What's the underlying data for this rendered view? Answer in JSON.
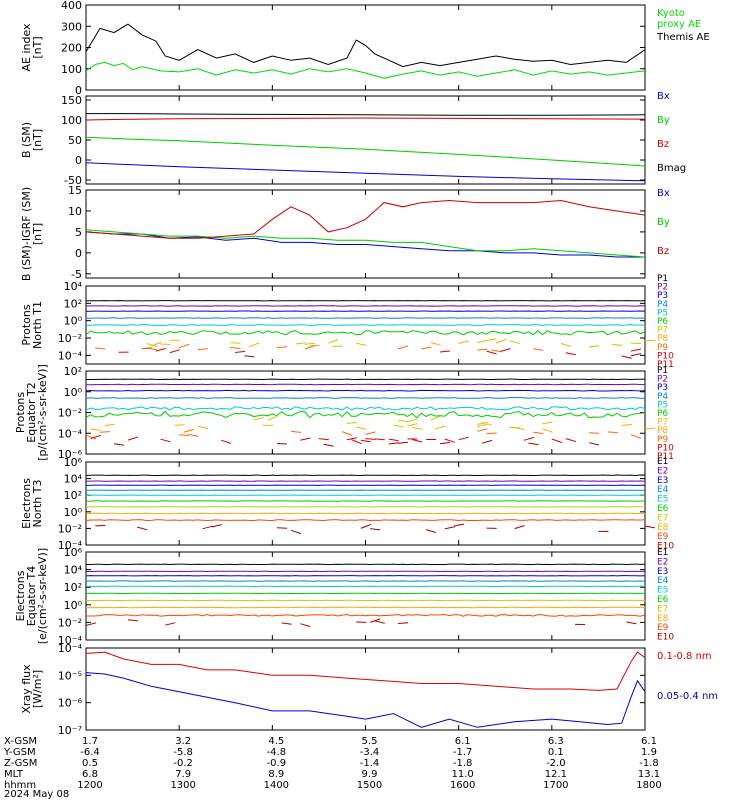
{
  "chart_data": [
    {
      "type": "line",
      "ylabel": "AE index\n[nT]",
      "yscale": "linear",
      "ylim": [
        0,
        400
      ],
      "yticks": [
        0,
        100,
        200,
        300,
        400
      ],
      "ytick_labels": [
        "0",
        "100",
        "200",
        "300",
        "400"
      ],
      "legend_placement": "right",
      "series": [
        {
          "name": "Kyoto\nproxy AE",
          "color": "#00dd00",
          "x": [
            0,
            0.1,
            0.2,
            0.3,
            0.4,
            0.5,
            0.6,
            0.8,
            1.0,
            1.2,
            1.4,
            1.6,
            1.8,
            2.0,
            2.2,
            2.4,
            2.6,
            2.8,
            3.0,
            3.2,
            3.4,
            3.6,
            3.8,
            4.0,
            4.2,
            4.4,
            4.6,
            4.8,
            5.0,
            5.2,
            5.4,
            5.6,
            5.8,
            6.0
          ],
          "y": [
            90,
            120,
            130,
            115,
            125,
            95,
            110,
            90,
            85,
            100,
            70,
            95,
            80,
            95,
            75,
            100,
            85,
            100,
            80,
            55,
            75,
            90,
            70,
            85,
            65,
            80,
            95,
            70,
            90,
            75,
            85,
            70,
            80,
            90
          ]
        },
        {
          "name": "Themis AE",
          "color": "#000000",
          "x": [
            0,
            0.15,
            0.3,
            0.45,
            0.6,
            0.75,
            0.85,
            1.0,
            1.2,
            1.4,
            1.6,
            1.8,
            2.0,
            2.2,
            2.4,
            2.6,
            2.8,
            2.9,
            3.0,
            3.1,
            3.2,
            3.4,
            3.6,
            3.8,
            4.0,
            4.2,
            4.4,
            4.6,
            4.8,
            5.0,
            5.2,
            5.4,
            5.6,
            5.8,
            6.0
          ],
          "y": [
            180,
            290,
            270,
            310,
            260,
            230,
            160,
            140,
            190,
            150,
            170,
            130,
            160,
            140,
            150,
            120,
            150,
            235,
            210,
            170,
            150,
            110,
            130,
            115,
            130,
            145,
            160,
            145,
            135,
            140,
            120,
            130,
            140,
            130,
            190
          ]
        }
      ]
    },
    {
      "type": "line",
      "ylabel": "B (SM)\n[nT]",
      "yscale": "linear",
      "ylim": [
        -60,
        160
      ],
      "yticks": [
        -50,
        0,
        50,
        100,
        150
      ],
      "ytick_labels": [
        "-50",
        "0",
        "50",
        "100",
        "150"
      ],
      "legend_placement": "right",
      "series": [
        {
          "name": "Bx",
          "color": "#0000cc",
          "x": [
            0,
            0.5,
            1,
            2,
            3,
            4,
            5,
            6
          ],
          "y": [
            -7,
            -12,
            -17,
            -25,
            -33,
            -41,
            -47,
            -52
          ]
        },
        {
          "name": "By",
          "color": "#00cc00",
          "x": [
            0,
            0.5,
            1,
            2,
            3,
            4,
            5,
            6
          ],
          "y": [
            57,
            52,
            48,
            37,
            27,
            14,
            0,
            -15
          ]
        },
        {
          "name": "Bz",
          "color": "#cc0000",
          "x": [
            0,
            0.5,
            1,
            2,
            3,
            4,
            5,
            6
          ],
          "y": [
            100,
            102,
            103,
            104,
            105,
            104,
            103,
            102
          ]
        },
        {
          "name": "Bmag",
          "color": "#000000",
          "x": [
            0,
            0.5,
            1,
            2,
            3,
            4,
            5,
            6
          ],
          "y": [
            116,
            116,
            115,
            114,
            113,
            112,
            112,
            113
          ]
        }
      ]
    },
    {
      "type": "line",
      "ylabel": "B (SM)-IGRF (SM)\n[nT]",
      "yscale": "linear",
      "ylim": [
        -6,
        15
      ],
      "yticks": [
        -5,
        0,
        5,
        10,
        15
      ],
      "ytick_labels": [
        "-5",
        "0",
        "5",
        "10",
        "15"
      ],
      "legend_placement": "right",
      "series": [
        {
          "name": "Bx",
          "color": "#0000cc",
          "x": [
            0,
            0.3,
            0.6,
            0.9,
            1.2,
            1.5,
            1.8,
            2.1,
            2.4,
            2.7,
            3.0,
            3.3,
            3.6,
            3.9,
            4.2,
            4.5,
            4.8,
            5.1,
            5.4,
            5.7,
            6.0
          ],
          "y": [
            5,
            4.5,
            4.5,
            3.5,
            3.8,
            3,
            3.5,
            2.5,
            2.5,
            2,
            2,
            1.5,
            1,
            0.5,
            0.5,
            0,
            0,
            -0.5,
            -0.5,
            -1,
            -1
          ]
        },
        {
          "name": "By",
          "color": "#00cc00",
          "x": [
            0,
            0.3,
            0.6,
            0.9,
            1.2,
            1.5,
            1.8,
            2.1,
            2.4,
            2.7,
            3.0,
            3.3,
            3.6,
            3.9,
            4.2,
            4.5,
            4.8,
            5.1,
            5.4,
            5.7,
            6.0
          ],
          "y": [
            5.5,
            5,
            4.5,
            4,
            4,
            3.5,
            4,
            3.5,
            3.5,
            3,
            3,
            2.5,
            2.5,
            1.5,
            0.5,
            0.5,
            1,
            0.5,
            0,
            -0.5,
            -1
          ]
        },
        {
          "name": "Bz",
          "color": "#cc0000",
          "x": [
            0,
            0.3,
            0.6,
            0.9,
            1.2,
            1.5,
            1.8,
            2.0,
            2.2,
            2.4,
            2.6,
            2.8,
            3.0,
            3.2,
            3.4,
            3.6,
            3.9,
            4.2,
            4.5,
            4.8,
            5.1,
            5.4,
            5.7,
            6.0
          ],
          "y": [
            5,
            4.5,
            4,
            3.5,
            3.5,
            4,
            4.5,
            8,
            11,
            9,
            5,
            6,
            8,
            12,
            11,
            12,
            12.5,
            12,
            12,
            12,
            12.5,
            11,
            10,
            9
          ]
        }
      ]
    },
    {
      "type": "line",
      "ylabel": "Protons\nNorth T1",
      "yscale": "log",
      "ylim": [
        -5,
        4
      ],
      "yticks": [
        -4,
        -2,
        0,
        2,
        4
      ],
      "ytick_labels": [
        "10⁻⁴",
        "10⁻²",
        "10⁰",
        "10²",
        "10⁴"
      ],
      "legend_placement": "right",
      "series": [
        {
          "name": "P1",
          "color": "#000000",
          "level": 2.3,
          "noise": 0.02
        },
        {
          "name": "P2",
          "color": "#7700aa",
          "level": 1.7,
          "noise": 0.02
        },
        {
          "name": "P3",
          "color": "#0000cc",
          "level": 1.1,
          "noise": 0.02
        },
        {
          "name": "P4",
          "color": "#0088cc",
          "level": 0.3,
          "noise": 0.03
        },
        {
          "name": "P5",
          "color": "#00cccc",
          "level": -0.5,
          "noise": 0.05
        },
        {
          "name": "P6",
          "color": "#00cc00",
          "level": -1.4,
          "noise": 0.25
        },
        {
          "name": "P7",
          "color": "#cccc00",
          "level": -2.5,
          "noise": 0.3,
          "sparse": true
        },
        {
          "name": "P8",
          "color": "#ffaa00",
          "level": -2.8,
          "noise": 0.3,
          "sparse": true
        },
        {
          "name": "P9",
          "color": "#ff6600",
          "level": -3.2,
          "noise": 0.2,
          "sparse": true
        },
        {
          "name": "P10",
          "color": "#dd0000",
          "level": -3.6,
          "noise": 0.1,
          "sparse": true
        },
        {
          "name": "P11",
          "color": "#aa0000",
          "level": -4.0,
          "noise": 0.1,
          "sparse": true
        }
      ]
    },
    {
      "type": "line",
      "ylabel": "Protons\nEquator T2\n[p/(cm²-s-sr-keV)]",
      "yscale": "log",
      "ylim": [
        -6,
        2
      ],
      "yticks": [
        -6,
        -4,
        -2,
        0,
        2
      ],
      "ytick_labels": [
        "10⁻⁶",
        "10⁻⁴",
        "10⁻²",
        "10⁰",
        "10²"
      ],
      "legend_placement": "right",
      "series": [
        {
          "name": "P1",
          "color": "#000000",
          "level": 1.2,
          "noise": 0.02
        },
        {
          "name": "P2",
          "color": "#7700aa",
          "level": 0.7,
          "noise": 0.02
        },
        {
          "name": "P3",
          "color": "#0000cc",
          "level": 0.1,
          "noise": 0.03
        },
        {
          "name": "P4",
          "color": "#0088cc",
          "level": -0.6,
          "noise": 0.04
        },
        {
          "name": "P5",
          "color": "#00cccc",
          "level": -1.6,
          "noise": 0.15
        },
        {
          "name": "P6",
          "color": "#00cc00",
          "level": -2.2,
          "noise": 0.3
        },
        {
          "name": "P7",
          "color": "#cccc00",
          "level": -3.0,
          "noise": 0.3,
          "sparse": true
        },
        {
          "name": "P8",
          "color": "#ffaa00",
          "level": -3.4,
          "noise": 0.2,
          "sparse": true
        },
        {
          "name": "P9",
          "color": "#ff6600",
          "level": -4.0,
          "noise": 0.2,
          "sparse": true
        },
        {
          "name": "P10",
          "color": "#dd0000",
          "level": -4.6,
          "noise": 0.1,
          "sparse": true
        },
        {
          "name": "P11",
          "color": "#aa0000",
          "level": -5.0,
          "noise": 0.1,
          "sparse": true
        }
      ]
    },
    {
      "type": "line",
      "ylabel": "Electrons\nNorth T3",
      "yscale": "log",
      "ylim": [
        -4,
        6
      ],
      "yticks": [
        -4,
        -2,
        0,
        2,
        4,
        6
      ],
      "ytick_labels": [
        "10⁻⁴",
        "10⁻²",
        "10⁰",
        "10²",
        "10⁴",
        "10⁶"
      ],
      "legend_placement": "right",
      "series": [
        {
          "name": "E1",
          "color": "#000000",
          "level": 4.4,
          "noise": 0.03
        },
        {
          "name": "E2",
          "color": "#7700aa",
          "level": 3.7,
          "noise": 0.02
        },
        {
          "name": "E3",
          "color": "#0000cc",
          "level": 3.2,
          "noise": 0.02
        },
        {
          "name": "E4",
          "color": "#0088cc",
          "level": 2.6,
          "noise": 0.02
        },
        {
          "name": "E5",
          "color": "#00cccc",
          "level": 2.0,
          "noise": 0.02
        },
        {
          "name": "E6",
          "color": "#00cc00",
          "level": 1.3,
          "noise": 0.02
        },
        {
          "name": "E7",
          "color": "#cccc00",
          "level": 0.6,
          "noise": 0.02
        },
        {
          "name": "E8",
          "color": "#ffaa00",
          "level": -0.2,
          "noise": 0.03
        },
        {
          "name": "E9",
          "color": "#ff4400",
          "level": -1.0,
          "noise": 0.05
        },
        {
          "name": "E10",
          "color": "#aa0000",
          "level": -2.0,
          "noise": 0.4,
          "sparse": true
        }
      ]
    },
    {
      "type": "line",
      "ylabel": "Electrons\nEquator T4\n[e/(cm²-s-sr-keV)]",
      "yscale": "log",
      "ylim": [
        -4,
        6
      ],
      "yticks": [
        -4,
        -2,
        0,
        2,
        4,
        6
      ],
      "ytick_labels": [
        "10⁻⁴",
        "10⁻²",
        "10⁰",
        "10²",
        "10⁴",
        "10⁶"
      ],
      "legend_placement": "right",
      "series": [
        {
          "name": "E1",
          "color": "#000000",
          "level": 4.6,
          "noise": 0.03
        },
        {
          "name": "E2",
          "color": "#7700aa",
          "level": 3.8,
          "noise": 0.02
        },
        {
          "name": "E3",
          "color": "#0000cc",
          "level": 3.3,
          "noise": 0.02
        },
        {
          "name": "E4",
          "color": "#0088cc",
          "level": 2.7,
          "noise": 0.02
        },
        {
          "name": "E5",
          "color": "#00cccc",
          "level": 2.1,
          "noise": 0.02
        },
        {
          "name": "E6",
          "color": "#00cc00",
          "level": 1.3,
          "noise": 0.02
        },
        {
          "name": "E7",
          "color": "#cccc00",
          "level": 0.5,
          "noise": 0.02
        },
        {
          "name": "E8",
          "color": "#ffaa00",
          "level": -0.3,
          "noise": 0.03
        },
        {
          "name": "E9",
          "color": "#ff4400",
          "level": -1.2,
          "noise": 0.1
        },
        {
          "name": "E10",
          "color": "#aa0000",
          "level": -2.0,
          "noise": 0.4,
          "sparse": true
        }
      ]
    },
    {
      "type": "line",
      "ylabel": "Xray flux\n[W/m²]",
      "yscale": "log",
      "ylim": [
        -7,
        -4
      ],
      "yticks": [
        -7,
        -6,
        -5,
        -4
      ],
      "ytick_labels": [
        "10⁻⁷",
        "10⁻⁶",
        "10⁻⁵",
        "10⁻⁴"
      ],
      "legend_placement": "right",
      "series": [
        {
          "name": "0.1-0.8 nm",
          "color": "#dd0000",
          "x": [
            0,
            0.2,
            0.4,
            0.7,
            1.0,
            1.3,
            1.6,
            2.0,
            2.4,
            2.8,
            3.2,
            3.6,
            4.0,
            4.4,
            4.8,
            5.2,
            5.5,
            5.7,
            5.85,
            5.92,
            6.0
          ],
          "y": [
            -4.2,
            -4.15,
            -4.4,
            -4.6,
            -4.6,
            -4.8,
            -4.8,
            -5.0,
            -5.0,
            -5.1,
            -5.2,
            -5.3,
            -5.3,
            -5.4,
            -5.5,
            -5.5,
            -5.55,
            -5.5,
            -4.5,
            -4.15,
            -4.35
          ]
        },
        {
          "name": "0.05-0.4 nm",
          "color": "#0000cc",
          "x": [
            0,
            0.2,
            0.4,
            0.7,
            1.0,
            1.3,
            1.6,
            2.0,
            2.4,
            2.8,
            3.0,
            3.3,
            3.6,
            3.9,
            4.2,
            4.6,
            5.0,
            5.3,
            5.6,
            5.75,
            5.85,
            5.92,
            6.0
          ],
          "y": [
            -4.9,
            -4.95,
            -5.1,
            -5.4,
            -5.6,
            -5.8,
            -6.0,
            -6.3,
            -6.3,
            -6.5,
            -6.6,
            -6.4,
            -6.9,
            -6.6,
            -6.9,
            -6.7,
            -6.6,
            -6.7,
            -6.8,
            -6.75,
            -5.8,
            -5.2,
            -5.6
          ]
        }
      ]
    }
  ],
  "footer": {
    "rows": [
      {
        "label": "X-GSM",
        "values": [
          "1.7",
          "3.2",
          "4.5",
          "5.5",
          "6.1",
          "6.3",
          "6.1"
        ]
      },
      {
        "label": "Y-GSM",
        "values": [
          "-6.4",
          "-5.8",
          "-4.8",
          "-3.4",
          "-1.7",
          "0.1",
          "1.9"
        ]
      },
      {
        "label": "Z-GSM",
        "values": [
          "0.5",
          "-0.2",
          "-0.9",
          "-1.4",
          "-1.8",
          "-2.0",
          "-1.8"
        ]
      },
      {
        "label": "MLT",
        "values": [
          "6.8",
          "7.9",
          "8.9",
          "9.9",
          "11.0",
          "12.1",
          "13.1"
        ]
      },
      {
        "label": "hhmm",
        "values": [
          "1200",
          "1300",
          "1400",
          "1500",
          "1600",
          "1700",
          "1800"
        ]
      }
    ],
    "date": "2024 May 08"
  },
  "x_hours": [
    0,
    1,
    2,
    3,
    4,
    5,
    6
  ]
}
